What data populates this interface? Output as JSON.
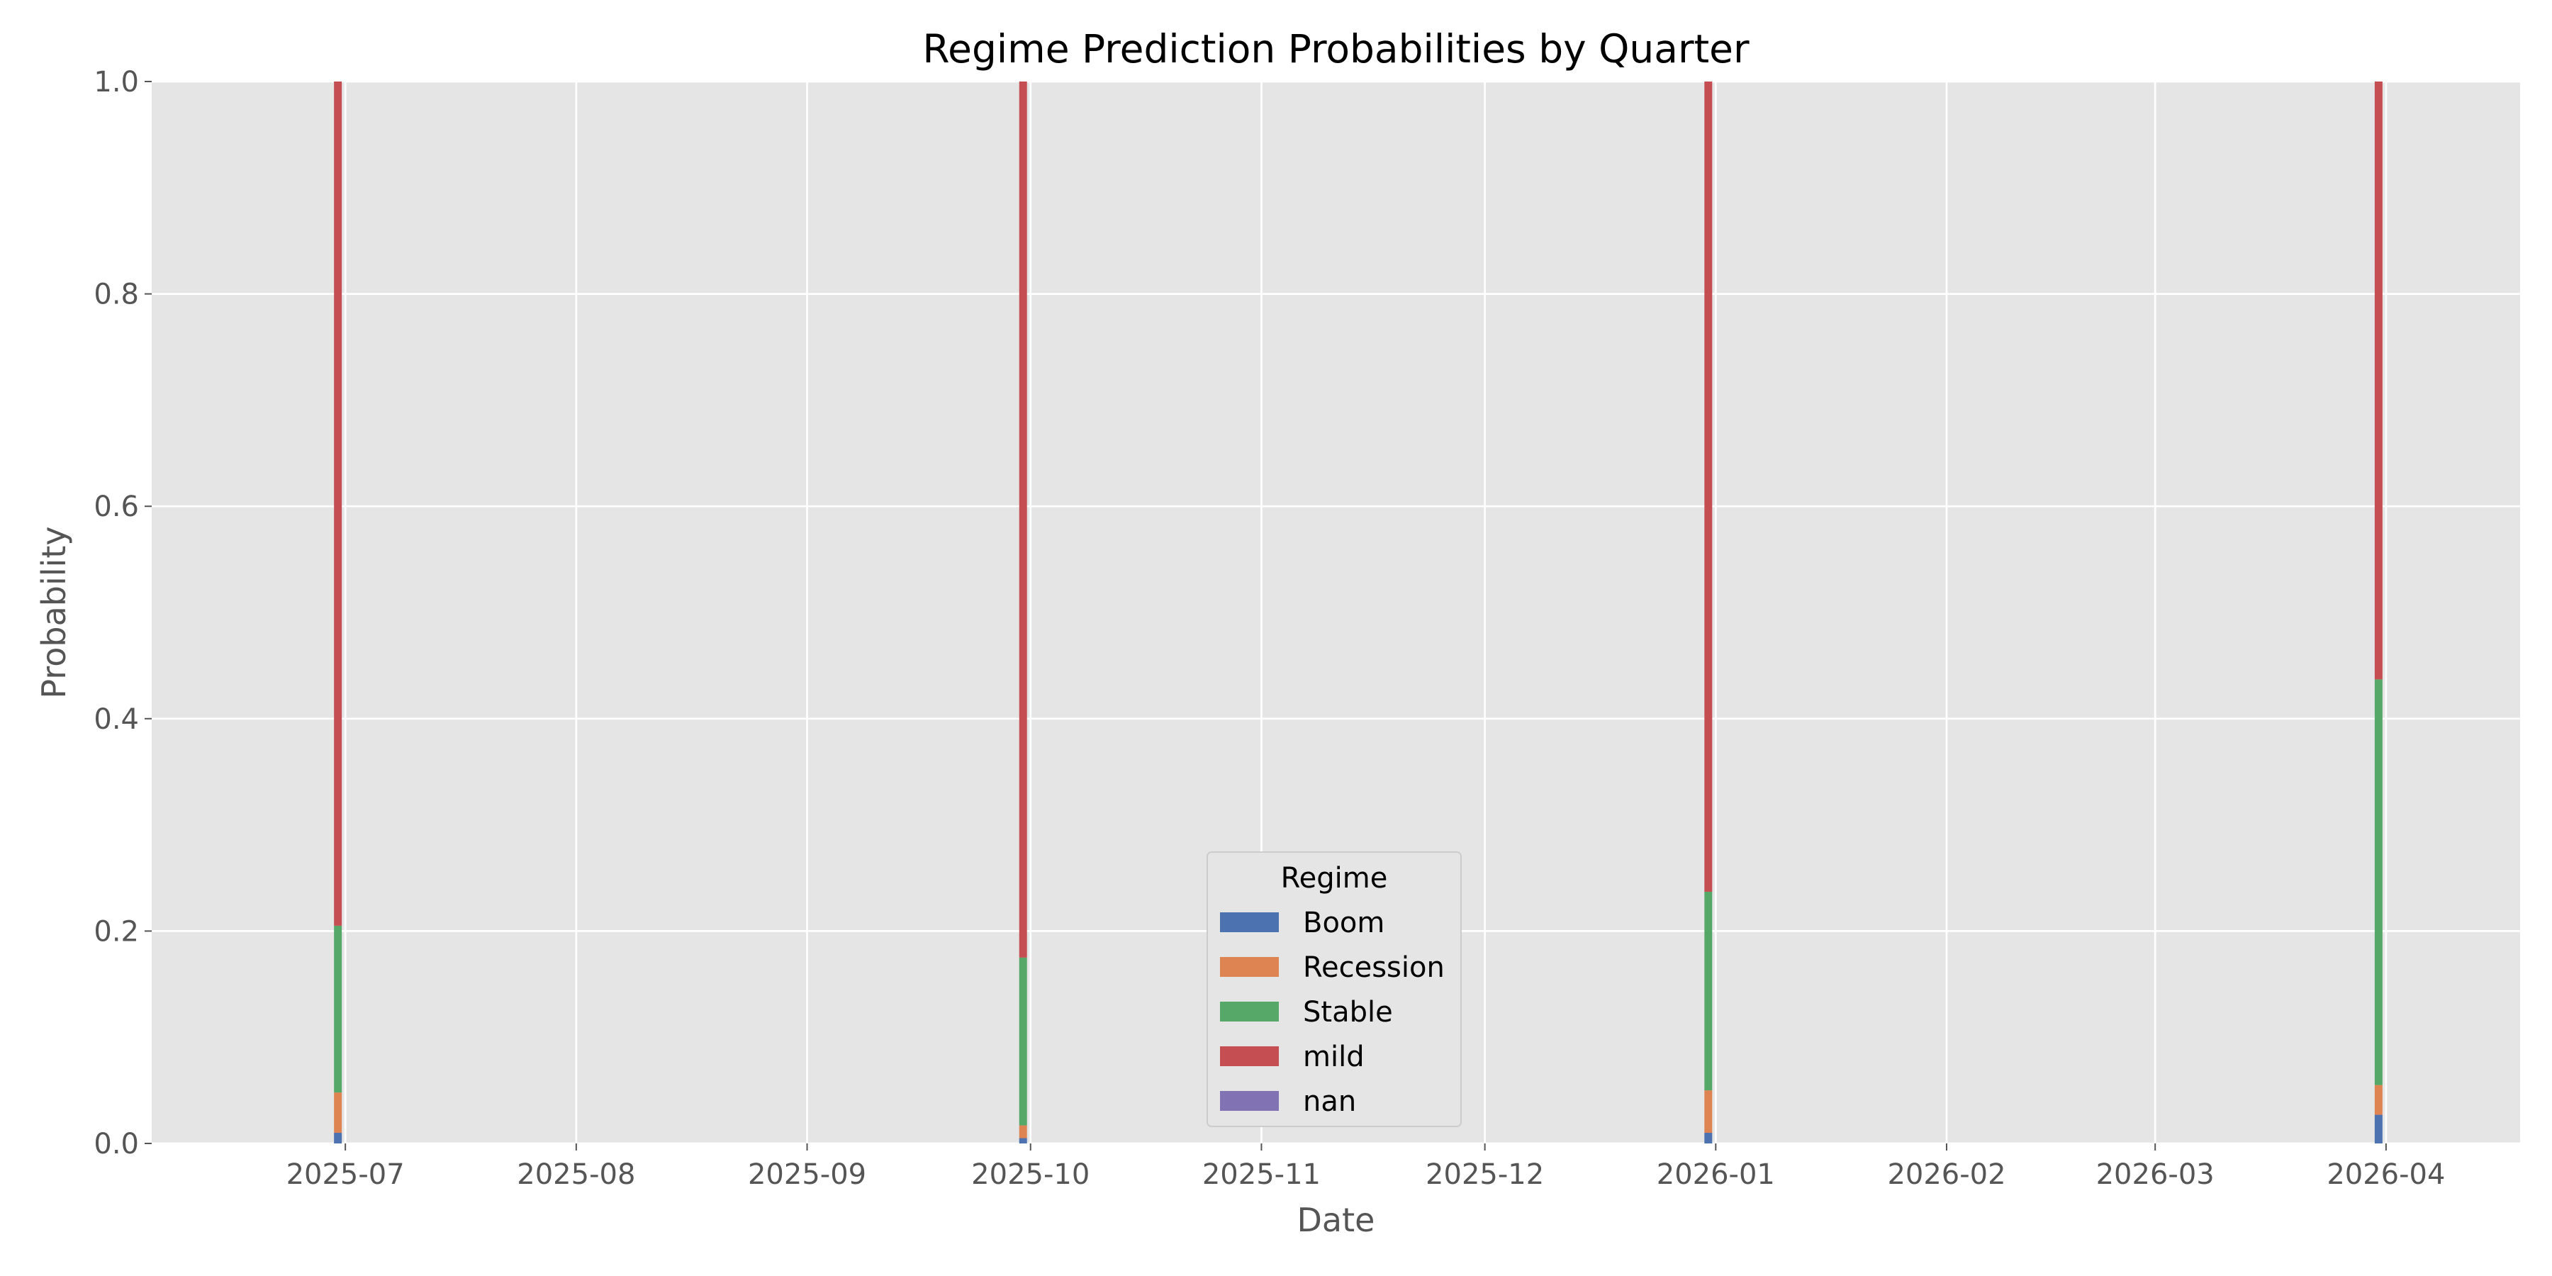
{
  "chart_data": {
    "type": "bar",
    "stacked": true,
    "title": "Regime Prediction Probabilities by Quarter",
    "xlabel": "Date",
    "ylabel": "Probability",
    "ylim": [
      0,
      1
    ],
    "xlim": [
      "2025-06-05",
      "2026-04-19"
    ],
    "yticks": [
      0.0,
      0.2,
      0.4,
      0.6,
      0.8,
      1.0
    ],
    "ytick_labels": [
      "0.0",
      "0.2",
      "0.4",
      "0.6",
      "0.8",
      "1.0"
    ],
    "xticks": [
      "2025-07-01",
      "2025-08-01",
      "2025-09-01",
      "2025-10-01",
      "2025-11-01",
      "2025-12-01",
      "2026-01-01",
      "2026-02-01",
      "2026-03-01",
      "2026-04-01"
    ],
    "xtick_labels": [
      "2025-07",
      "2025-08",
      "2025-09",
      "2025-10",
      "2025-11",
      "2025-12",
      "2026-01",
      "2026-02",
      "2026-03",
      "2026-04"
    ],
    "x": [
      "2025-06-30",
      "2025-09-30",
      "2025-12-31",
      "2026-03-31"
    ],
    "series": [
      {
        "name": "Boom",
        "color": "#4c72b0",
        "values": [
          0.01,
          0.005,
          0.01,
          0.027
        ]
      },
      {
        "name": "Recession",
        "color": "#dd8452",
        "values": [
          0.038,
          0.012,
          0.04,
          0.028
        ]
      },
      {
        "name": "Stable",
        "color": "#55a868",
        "values": [
          0.157,
          0.158,
          0.187,
          0.382
        ]
      },
      {
        "name": "mild",
        "color": "#c44e52",
        "values": [
          0.795,
          0.825,
          0.763,
          0.563
        ]
      },
      {
        "name": "nan",
        "color": "#8172b3",
        "values": [
          0,
          0,
          0,
          0
        ]
      }
    ],
    "legend": {
      "title": "Regime",
      "placement": "lower-center"
    },
    "grid": true
  }
}
